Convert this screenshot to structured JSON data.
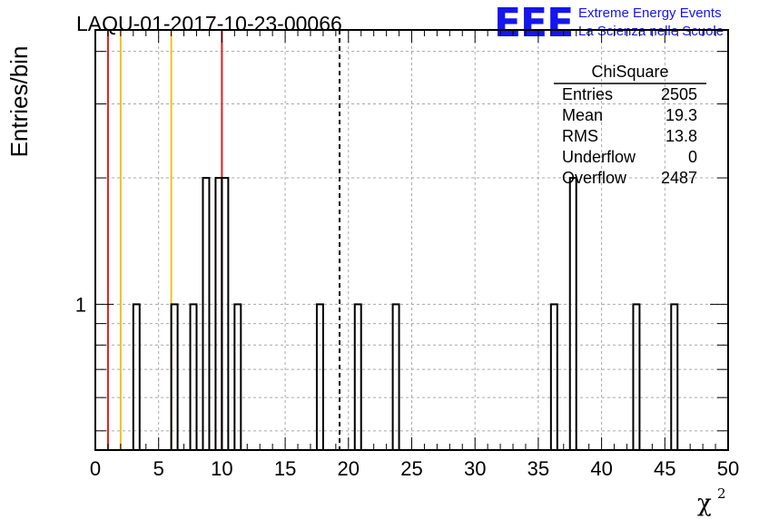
{
  "chart_data": {
    "type": "histogram",
    "title": "LAQU-01-2017-10-23-00066",
    "xlabel": "χ",
    "xlabel_superscript": "2",
    "ylabel": "Entries/bin",
    "xlim": [
      0,
      50
    ],
    "ylim_log": [
      0.45,
      4.5
    ],
    "x_ticks": [
      0,
      5,
      10,
      15,
      20,
      25,
      30,
      35,
      40,
      45,
      50
    ],
    "y_ticks_labeled": [
      1
    ],
    "y_scale": "log",
    "bin_width": 0.5,
    "bins": [
      {
        "x0": 3.0,
        "count": 1
      },
      {
        "x0": 6.0,
        "count": 1
      },
      {
        "x0": 7.5,
        "count": 1
      },
      {
        "x0": 8.5,
        "count": 2
      },
      {
        "x0": 9.5,
        "count": 2
      },
      {
        "x0": 10.0,
        "count": 2
      },
      {
        "x0": 11.0,
        "count": 1
      },
      {
        "x0": 17.5,
        "count": 1
      },
      {
        "x0": 20.5,
        "count": 1
      },
      {
        "x0": 23.5,
        "count": 1
      },
      {
        "x0": 36.0,
        "count": 1
      },
      {
        "x0": 37.5,
        "count": 2
      },
      {
        "x0": 42.5,
        "count": 1
      },
      {
        "x0": 45.5,
        "count": 1
      }
    ],
    "vertical_lines": [
      {
        "x": 1.0,
        "color": "#e0201b",
        "style": "solid"
      },
      {
        "x": 2.0,
        "color": "#f0c020",
        "style": "solid"
      },
      {
        "x": 6.0,
        "color": "#f0c020",
        "style": "solid"
      },
      {
        "x": 10.0,
        "color": "#e0201b",
        "style": "solid"
      },
      {
        "x": 19.3,
        "color": "#000000",
        "style": "dashed"
      }
    ],
    "grid": true,
    "stats_box": {
      "title": "ChiSquare",
      "rows": [
        {
          "label": "Entries",
          "value": "2505"
        },
        {
          "label": "Mean",
          "value": "19.3"
        },
        {
          "label": "RMS",
          "value": "13.8"
        },
        {
          "label": "Underflow",
          "value": "0"
        },
        {
          "label": "Overflow",
          "value": "2487"
        }
      ]
    }
  },
  "logo": {
    "mark": "EEE",
    "line1": "Extreme Energy Events",
    "line2": "La Scienza nelle Scuole"
  },
  "colors": {
    "logo_blue": "#1515ee",
    "grid": "#a8a8a8",
    "red_line": "#e0201b",
    "yellow_line": "#f0c020"
  }
}
